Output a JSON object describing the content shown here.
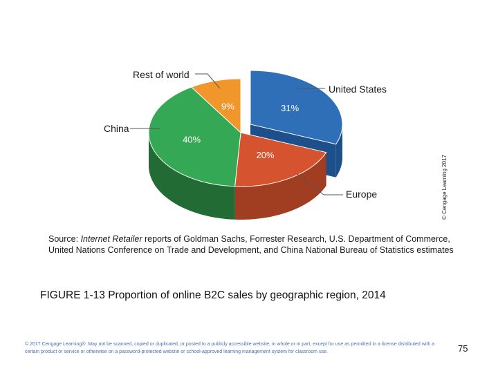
{
  "chart_data": {
    "type": "pie",
    "slices": [
      {
        "label": "United States",
        "value": 31,
        "value_label": "31%",
        "color": "#2e6fb7",
        "side_color": "#1d4f8a"
      },
      {
        "label": "Europe",
        "value": 20,
        "value_label": "20%",
        "color": "#d5532e",
        "side_color": "#a13d20"
      },
      {
        "label": "China",
        "value": 40,
        "value_label": "40%",
        "color": "#34a854",
        "side_color": "#226b34"
      },
      {
        "label": "Rest of world",
        "value": 9,
        "value_label": "9%",
        "color": "#f0962a",
        "side_color": "#b86c16"
      }
    ]
  },
  "credit": "© Cengage Learning 2017",
  "source": {
    "prefix": "Source: ",
    "publication": "Internet Retailer",
    "rest": " reports of Goldman Sachs, Forrester Research, U.S. Department of Commerce, United Nations Conference on Trade and Development, and China National Bureau of Statistics estimates"
  },
  "caption": "FIGURE 1-13 Proportion of online B2C sales by geographic region, 2014",
  "footer": "© 2017 Cengage Learning®. May not be scanned, copied or duplicated, or posted to a publicly accessible website, in whole or in part, except for use as permitted in a license distributed with a certain product or service or otherwise on a password-protected website or school-approved learning management system for classroom use.",
  "page_number": "75"
}
